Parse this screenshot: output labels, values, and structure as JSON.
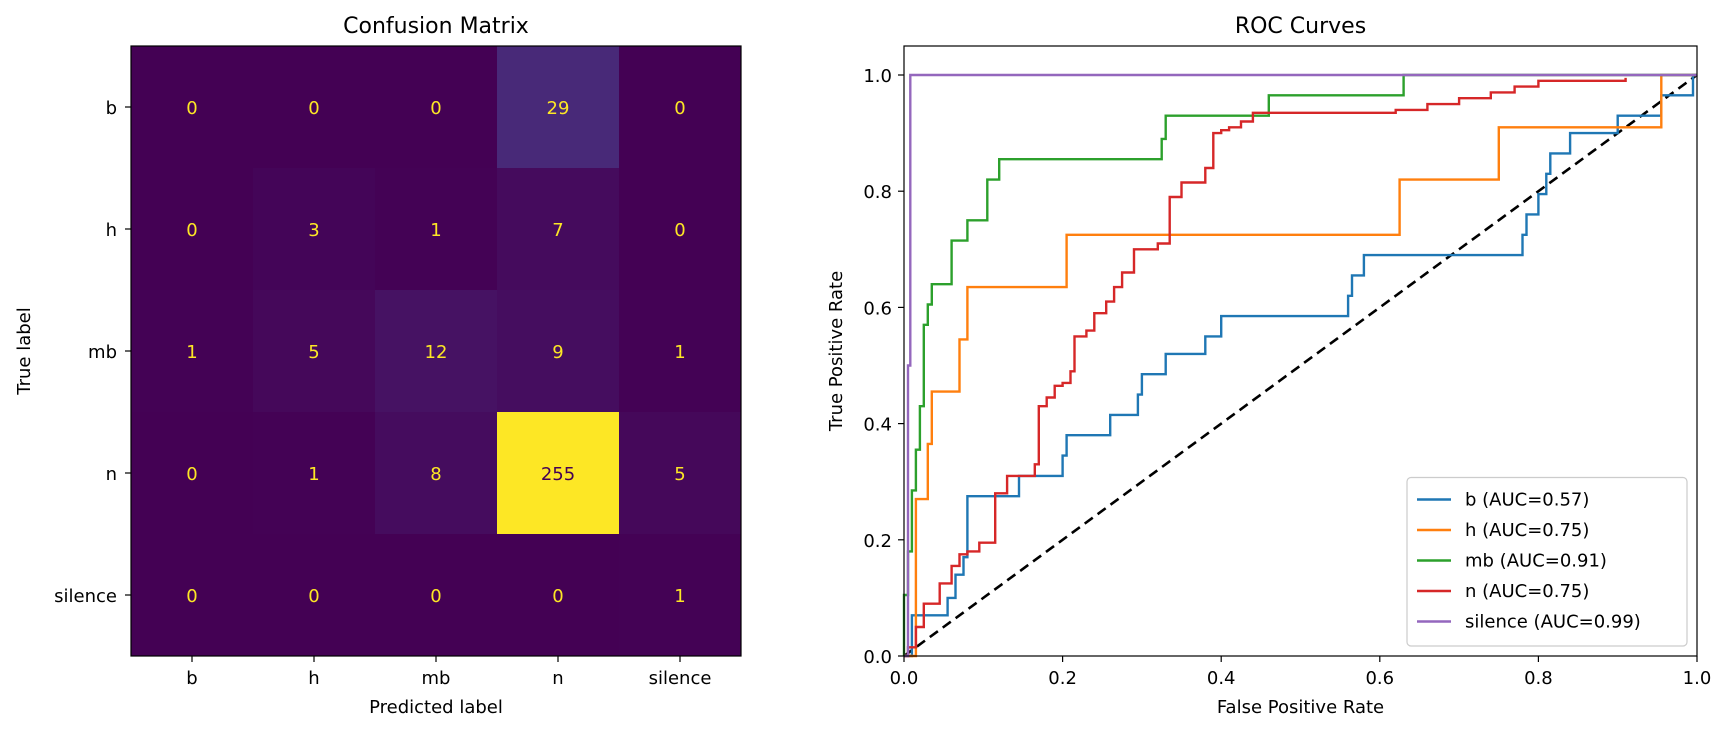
{
  "chart_data": [
    {
      "type": "heatmap",
      "title": "Confusion Matrix",
      "xlabel": "Predicted label",
      "ylabel": "True label",
      "x_categories": [
        "b",
        "h",
        "mb",
        "n",
        "silence"
      ],
      "y_categories": [
        "b",
        "h",
        "mb",
        "n",
        "silence"
      ],
      "matrix": [
        [
          0,
          0,
          0,
          29,
          0
        ],
        [
          0,
          3,
          1,
          7,
          0
        ],
        [
          1,
          5,
          12,
          9,
          1
        ],
        [
          0,
          1,
          8,
          255,
          5
        ],
        [
          0,
          0,
          0,
          0,
          1
        ]
      ],
      "colormap": "viridis",
      "vmin": 0,
      "vmax": 255,
      "text_color_light": "#fde725",
      "text_color_dark": "#440154"
    },
    {
      "type": "line",
      "title": "ROC Curves",
      "xlabel": "False Positive Rate",
      "ylabel": "True Positive Rate",
      "xlim": [
        0,
        1
      ],
      "ylim": [
        0,
        1
      ],
      "xticks": [
        "0.0",
        "0.2",
        "0.4",
        "0.6",
        "0.8",
        "1.0"
      ],
      "yticks": [
        "0.0",
        "0.2",
        "0.4",
        "0.6",
        "0.8",
        "1.0"
      ],
      "legend_position": "lower-right",
      "diagonal": {
        "points": [
          [
            0,
            0
          ],
          [
            1,
            1
          ]
        ],
        "color": "#000000",
        "style": "dashed"
      },
      "series": [
        {
          "name": "b (AUC=0.57)",
          "color": "#1f77b4",
          "points": [
            [
              0,
              0
            ],
            [
              0.01,
              0
            ],
            [
              0.01,
              0.07
            ],
            [
              0.055,
              0.07
            ],
            [
              0.055,
              0.1
            ],
            [
              0.065,
              0.1
            ],
            [
              0.065,
              0.14
            ],
            [
              0.075,
              0.14
            ],
            [
              0.075,
              0.17
            ],
            [
              0.08,
              0.17
            ],
            [
              0.08,
              0.275
            ],
            [
              0.145,
              0.275
            ],
            [
              0.145,
              0.31
            ],
            [
              0.2,
              0.31
            ],
            [
              0.2,
              0.345
            ],
            [
              0.205,
              0.345
            ],
            [
              0.205,
              0.38
            ],
            [
              0.26,
              0.38
            ],
            [
              0.26,
              0.415
            ],
            [
              0.295,
              0.415
            ],
            [
              0.295,
              0.45
            ],
            [
              0.3,
              0.45
            ],
            [
              0.3,
              0.485
            ],
            [
              0.33,
              0.485
            ],
            [
              0.33,
              0.52
            ],
            [
              0.38,
              0.52
            ],
            [
              0.38,
              0.55
            ],
            [
              0.4,
              0.55
            ],
            [
              0.4,
              0.585
            ],
            [
              0.56,
              0.585
            ],
            [
              0.56,
              0.62
            ],
            [
              0.565,
              0.62
            ],
            [
              0.565,
              0.655
            ],
            [
              0.58,
              0.655
            ],
            [
              0.58,
              0.69
            ],
            [
              0.78,
              0.69
            ],
            [
              0.78,
              0.725
            ],
            [
              0.785,
              0.725
            ],
            [
              0.785,
              0.76
            ],
            [
              0.8,
              0.76
            ],
            [
              0.8,
              0.795
            ],
            [
              0.81,
              0.795
            ],
            [
              0.81,
              0.83
            ],
            [
              0.815,
              0.83
            ],
            [
              0.815,
              0.865
            ],
            [
              0.84,
              0.865
            ],
            [
              0.84,
              0.9
            ],
            [
              0.9,
              0.9
            ],
            [
              0.9,
              0.93
            ],
            [
              0.955,
              0.93
            ],
            [
              0.955,
              0.965
            ],
            [
              0.995,
              0.965
            ],
            [
              0.995,
              1
            ],
            [
              1,
              1
            ]
          ]
        },
        {
          "name": "h (AUC=0.75)",
          "color": "#ff7f0e",
          "points": [
            [
              0,
              0
            ],
            [
              0.015,
              0
            ],
            [
              0.015,
              0.27
            ],
            [
              0.03,
              0.27
            ],
            [
              0.03,
              0.365
            ],
            [
              0.035,
              0.365
            ],
            [
              0.035,
              0.455
            ],
            [
              0.07,
              0.455
            ],
            [
              0.07,
              0.545
            ],
            [
              0.08,
              0.545
            ],
            [
              0.08,
              0.635
            ],
            [
              0.205,
              0.635
            ],
            [
              0.205,
              0.725
            ],
            [
              0.625,
              0.725
            ],
            [
              0.625,
              0.82
            ],
            [
              0.75,
              0.82
            ],
            [
              0.75,
              0.91
            ],
            [
              0.955,
              0.91
            ],
            [
              0.955,
              1
            ],
            [
              1,
              1
            ]
          ]
        },
        {
          "name": "mb (AUC=0.91)",
          "color": "#2ca02c",
          "points": [
            [
              0,
              0
            ],
            [
              0,
              0.105
            ],
            [
              0.005,
              0.105
            ],
            [
              0.005,
              0.18
            ],
            [
              0.01,
              0.18
            ],
            [
              0.01,
              0.285
            ],
            [
              0.015,
              0.285
            ],
            [
              0.015,
              0.355
            ],
            [
              0.02,
              0.355
            ],
            [
              0.02,
              0.43
            ],
            [
              0.025,
              0.43
            ],
            [
              0.025,
              0.57
            ],
            [
              0.03,
              0.57
            ],
            [
              0.03,
              0.605
            ],
            [
              0.035,
              0.605
            ],
            [
              0.035,
              0.64
            ],
            [
              0.06,
              0.64
            ],
            [
              0.06,
              0.715
            ],
            [
              0.08,
              0.715
            ],
            [
              0.08,
              0.75
            ],
            [
              0.105,
              0.75
            ],
            [
              0.105,
              0.82
            ],
            [
              0.12,
              0.82
            ],
            [
              0.12,
              0.855
            ],
            [
              0.325,
              0.855
            ],
            [
              0.325,
              0.89
            ],
            [
              0.33,
              0.89
            ],
            [
              0.33,
              0.93
            ],
            [
              0.46,
              0.93
            ],
            [
              0.46,
              0.965
            ],
            [
              0.63,
              0.965
            ],
            [
              0.63,
              1
            ],
            [
              1,
              1
            ]
          ]
        },
        {
          "name": "n (AUC=0.75)",
          "color": "#d62728",
          "points": [
            [
              0,
              0
            ],
            [
              0.005,
              0
            ],
            [
              0.005,
              0.015
            ],
            [
              0.015,
              0.015
            ],
            [
              0.015,
              0.05
            ],
            [
              0.025,
              0.05
            ],
            [
              0.025,
              0.09
            ],
            [
              0.045,
              0.09
            ],
            [
              0.045,
              0.125
            ],
            [
              0.06,
              0.125
            ],
            [
              0.06,
              0.155
            ],
            [
              0.07,
              0.155
            ],
            [
              0.07,
              0.175
            ],
            [
              0.08,
              0.175
            ],
            [
              0.08,
              0.18
            ],
            [
              0.095,
              0.18
            ],
            [
              0.095,
              0.195
            ],
            [
              0.115,
              0.195
            ],
            [
              0.115,
              0.28
            ],
            [
              0.13,
              0.28
            ],
            [
              0.13,
              0.31
            ],
            [
              0.165,
              0.31
            ],
            [
              0.165,
              0.33
            ],
            [
              0.17,
              0.33
            ],
            [
              0.17,
              0.43
            ],
            [
              0.18,
              0.43
            ],
            [
              0.18,
              0.445
            ],
            [
              0.19,
              0.445
            ],
            [
              0.19,
              0.465
            ],
            [
              0.2,
              0.465
            ],
            [
              0.2,
              0.47
            ],
            [
              0.21,
              0.47
            ],
            [
              0.21,
              0.49
            ],
            [
              0.215,
              0.49
            ],
            [
              0.215,
              0.55
            ],
            [
              0.23,
              0.55
            ],
            [
              0.23,
              0.56
            ],
            [
              0.24,
              0.56
            ],
            [
              0.24,
              0.59
            ],
            [
              0.255,
              0.59
            ],
            [
              0.255,
              0.61
            ],
            [
              0.265,
              0.61
            ],
            [
              0.265,
              0.635
            ],
            [
              0.275,
              0.635
            ],
            [
              0.275,
              0.66
            ],
            [
              0.29,
              0.66
            ],
            [
              0.29,
              0.7
            ],
            [
              0.32,
              0.7
            ],
            [
              0.32,
              0.71
            ],
            [
              0.335,
              0.71
            ],
            [
              0.335,
              0.79
            ],
            [
              0.35,
              0.79
            ],
            [
              0.35,
              0.815
            ],
            [
              0.38,
              0.815
            ],
            [
              0.38,
              0.84
            ],
            [
              0.39,
              0.84
            ],
            [
              0.39,
              0.9
            ],
            [
              0.4,
              0.9
            ],
            [
              0.4,
              0.905
            ],
            [
              0.41,
              0.905
            ],
            [
              0.41,
              0.91
            ],
            [
              0.425,
              0.91
            ],
            [
              0.425,
              0.92
            ],
            [
              0.44,
              0.92
            ],
            [
              0.44,
              0.935
            ],
            [
              0.62,
              0.935
            ],
            [
              0.62,
              0.94
            ],
            [
              0.66,
              0.94
            ],
            [
              0.66,
              0.95
            ],
            [
              0.7,
              0.95
            ],
            [
              0.7,
              0.96
            ],
            [
              0.74,
              0.96
            ],
            [
              0.74,
              0.97
            ],
            [
              0.77,
              0.97
            ],
            [
              0.77,
              0.98
            ],
            [
              0.8,
              0.98
            ],
            [
              0.8,
              0.99
            ],
            [
              0.91,
              0.99
            ],
            [
              0.91,
              0.995
            ]
          ]
        },
        {
          "name": "silence (AUC=0.99)",
          "color": "#9467bd",
          "points": [
            [
              0,
              0
            ],
            [
              0.005,
              0
            ],
            [
              0.005,
              0.5
            ],
            [
              0.008,
              0.5
            ],
            [
              0.008,
              1
            ],
            [
              1,
              1
            ]
          ]
        }
      ]
    }
  ]
}
